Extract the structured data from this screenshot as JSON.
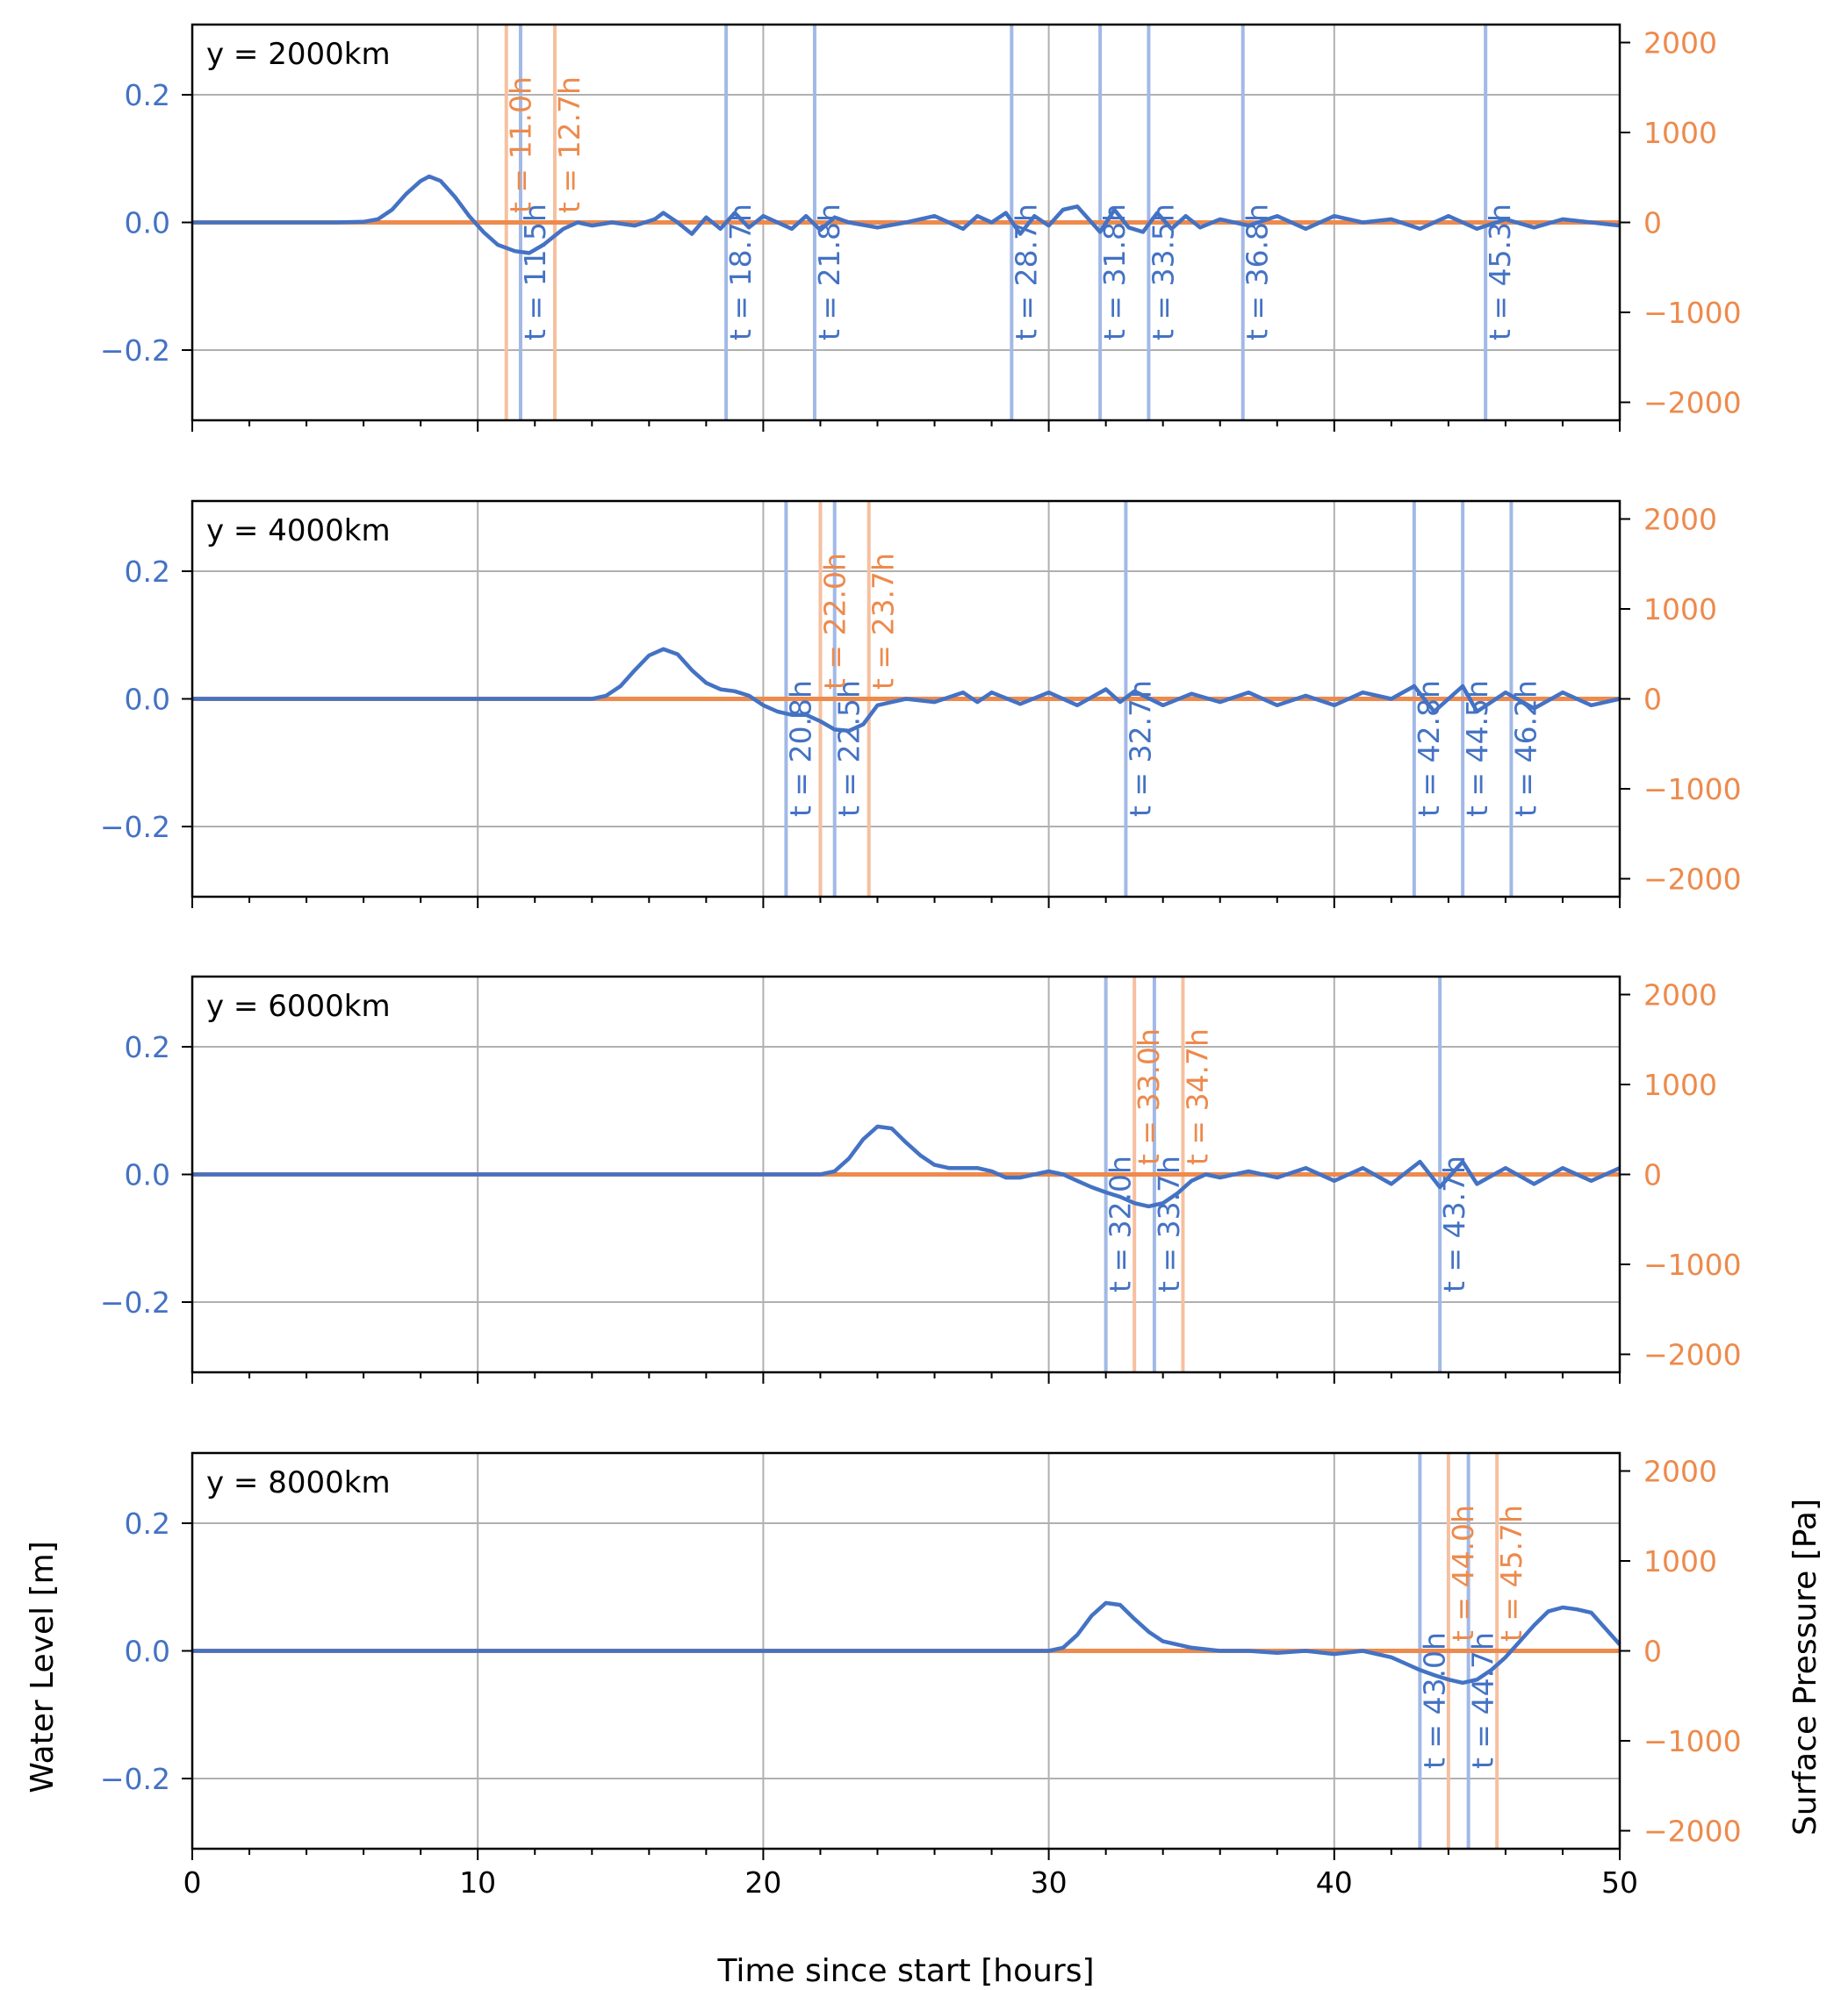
{
  "figure": {
    "xlabel": "Time since start [hours]",
    "ylabel_left": "Water Level [m]",
    "ylabel_right": "Surface Pressure [Pa]"
  },
  "colors": {
    "water": "#4472c4",
    "pressure": "#ed8a4c",
    "water_vline": "#a2b9e6",
    "pressure_vline": "#f6c0a0",
    "grid": "#b0b0b0"
  },
  "chart_data": [
    {
      "type": "line",
      "panel_label": "y = 2000km",
      "xlim": [
        0,
        50
      ],
      "ylim_left": [
        -0.31,
        0.31
      ],
      "ylim_right": [
        -2200,
        2200
      ],
      "x_ticks": [
        0,
        10,
        20,
        30,
        40,
        50
      ],
      "y_ticks_left": [
        "0.2",
        "0.0",
        "−0.2"
      ],
      "y_ticks_right": [
        "2000",
        "1000",
        "0",
        "−1000",
        "−2000"
      ],
      "grid": true,
      "series": [
        {
          "name": "Water Level [m]",
          "axis": "left",
          "x": [
            0,
            5,
            6,
            6.5,
            7,
            7.5,
            8,
            8.3,
            8.7,
            9.2,
            9.7,
            10.2,
            10.7,
            11.3,
            11.8,
            12.3,
            13,
            13.5,
            14,
            14.7,
            15.5,
            16.2,
            16.5,
            17,
            17.5,
            18,
            18.5,
            19,
            19.5,
            20,
            21,
            21.5,
            22,
            22.5,
            23,
            24,
            25,
            26,
            27,
            27.5,
            28,
            28.5,
            29,
            29.5,
            30,
            30.5,
            31,
            31.3,
            31.8,
            32.3,
            32.8,
            33.3,
            33.8,
            34.3,
            34.8,
            35.3,
            36,
            37,
            38,
            39,
            40,
            41,
            42,
            43,
            44,
            45,
            46,
            47,
            48,
            49,
            50
          ],
          "y": [
            0,
            0,
            0.001,
            0.005,
            0.02,
            0.045,
            0.065,
            0.072,
            0.065,
            0.04,
            0.01,
            -0.015,
            -0.035,
            -0.045,
            -0.048,
            -0.035,
            -0.01,
            0,
            -0.005,
            0,
            -0.005,
            0.005,
            0.015,
            0,
            -0.018,
            0.008,
            -0.01,
            0.015,
            -0.008,
            0.01,
            -0.01,
            0.01,
            -0.012,
            0.008,
            0,
            -0.008,
            0,
            0.01,
            -0.01,
            0.01,
            0,
            0.015,
            -0.018,
            0.01,
            -0.005,
            0.02,
            0.025,
            0.01,
            -0.015,
            0.02,
            -0.008,
            -0.015,
            0.015,
            -0.01,
            0.01,
            -0.008,
            0.005,
            -0.005,
            0.01,
            -0.01,
            0.01,
            0,
            0.005,
            -0.01,
            0.01,
            -0.01,
            0.005,
            -0.008,
            0.005,
            0,
            -0.005
          ]
        },
        {
          "name": "Surface Pressure [Pa]",
          "axis": "right",
          "x": [
            0,
            50
          ],
          "y": [
            0,
            0
          ]
        }
      ],
      "vlines_water": [
        {
          "t": 11.5,
          "label": "t = 11.5h"
        },
        {
          "t": 18.7,
          "label": "t = 18.7h"
        },
        {
          "t": 21.8,
          "label": "t = 21.8h"
        },
        {
          "t": 28.7,
          "label": "t = 28.7h"
        },
        {
          "t": 31.8,
          "label": "t = 31.8h"
        },
        {
          "t": 33.5,
          "label": "t = 33.5h"
        },
        {
          "t": 36.8,
          "label": "t = 36.8h"
        },
        {
          "t": 45.3,
          "label": "t = 45.3h"
        }
      ],
      "vlines_pressure": [
        {
          "t": 11.0,
          "label": "t = 11.0h"
        },
        {
          "t": 12.7,
          "label": "t = 12.7h"
        }
      ]
    },
    {
      "type": "line",
      "panel_label": "y = 4000km",
      "xlim": [
        0,
        50
      ],
      "ylim_left": [
        -0.31,
        0.31
      ],
      "ylim_right": [
        -2200,
        2200
      ],
      "x_ticks": [
        0,
        10,
        20,
        30,
        40,
        50
      ],
      "y_ticks_left": [
        "0.2",
        "0.0",
        "−0.2"
      ],
      "y_ticks_right": [
        "2000",
        "1000",
        "0",
        "−1000",
        "−2000"
      ],
      "grid": true,
      "series": [
        {
          "name": "Water Level [m]",
          "axis": "left",
          "x": [
            0,
            14,
            14.5,
            15,
            15.5,
            16,
            16.5,
            17,
            17.5,
            18,
            18.5,
            19,
            19.5,
            20,
            20.5,
            21,
            21.5,
            22,
            22.5,
            23,
            23.5,
            24,
            25,
            26,
            27,
            27.5,
            28,
            29,
            30,
            31,
            32,
            32.5,
            33,
            34,
            35,
            36,
            37,
            38,
            39,
            40,
            41,
            42,
            42.8,
            43.5,
            44.5,
            45,
            46,
            47,
            48,
            49,
            50
          ],
          "y": [
            0,
            0,
            0.005,
            0.02,
            0.045,
            0.068,
            0.078,
            0.07,
            0.045,
            0.025,
            0.015,
            0.012,
            0.005,
            -0.01,
            -0.02,
            -0.025,
            -0.025,
            -0.035,
            -0.048,
            -0.05,
            -0.04,
            -0.01,
            0,
            -0.005,
            0.01,
            -0.005,
            0.01,
            -0.008,
            0.01,
            -0.01,
            0.015,
            -0.005,
            0.012,
            -0.01,
            0.008,
            -0.005,
            0.01,
            -0.01,
            0.005,
            -0.01,
            0.01,
            0,
            0.02,
            -0.02,
            0.02,
            -0.02,
            0.01,
            -0.015,
            0.01,
            -0.01,
            0
          ]
        },
        {
          "name": "Surface Pressure [Pa]",
          "axis": "right",
          "x": [
            0,
            50
          ],
          "y": [
            0,
            0
          ]
        }
      ],
      "vlines_water": [
        {
          "t": 20.8,
          "label": "t = 20.8h"
        },
        {
          "t": 22.5,
          "label": "t = 22.5h"
        },
        {
          "t": 32.7,
          "label": "t = 32.7h"
        },
        {
          "t": 42.8,
          "label": "t = 42.8h"
        },
        {
          "t": 44.5,
          "label": "t = 44.5h"
        },
        {
          "t": 46.2,
          "label": "t = 46.2h"
        }
      ],
      "vlines_pressure": [
        {
          "t": 22.0,
          "label": "t = 22.0h"
        },
        {
          "t": 23.7,
          "label": "t = 23.7h"
        }
      ]
    },
    {
      "type": "line",
      "panel_label": "y = 6000km",
      "xlim": [
        0,
        50
      ],
      "ylim_left": [
        -0.31,
        0.31
      ],
      "ylim_right": [
        -2200,
        2200
      ],
      "x_ticks": [
        0,
        10,
        20,
        30,
        40,
        50
      ],
      "y_ticks_left": [
        "0.2",
        "0.0",
        "−0.2"
      ],
      "y_ticks_right": [
        "2000",
        "1000",
        "0",
        "−1000",
        "−2000"
      ],
      "grid": true,
      "series": [
        {
          "name": "Water Level [m]",
          "axis": "left",
          "x": [
            0,
            22,
            22.5,
            23,
            23.5,
            24,
            24.5,
            25,
            25.5,
            26,
            26.5,
            27,
            27.5,
            28,
            28.5,
            29,
            29.5,
            30,
            30.5,
            31,
            31.5,
            32,
            32.5,
            33,
            33.5,
            34,
            34.5,
            35,
            35.5,
            36,
            37,
            38,
            39,
            40,
            41,
            42,
            43,
            43.7,
            44.5,
            45,
            46,
            47,
            48,
            49,
            50
          ],
          "y": [
            0,
            0,
            0.005,
            0.025,
            0.055,
            0.075,
            0.072,
            0.05,
            0.03,
            0.015,
            0.01,
            0.01,
            0.01,
            0.005,
            -0.005,
            -0.005,
            0,
            0.005,
            0,
            -0.01,
            -0.02,
            -0.028,
            -0.035,
            -0.045,
            -0.05,
            -0.045,
            -0.03,
            -0.01,
            0,
            -0.005,
            0.005,
            -0.005,
            0.01,
            -0.01,
            0.01,
            -0.015,
            0.02,
            -0.02,
            0.02,
            -0.015,
            0.01,
            -0.015,
            0.01,
            -0.01,
            0.01
          ]
        },
        {
          "name": "Surface Pressure [Pa]",
          "axis": "right",
          "x": [
            0,
            50
          ],
          "y": [
            0,
            0
          ]
        }
      ],
      "vlines_water": [
        {
          "t": 32.0,
          "label": "t = 32.0h"
        },
        {
          "t": 33.7,
          "label": "t = 33.7h"
        },
        {
          "t": 43.7,
          "label": "t = 43.7h"
        }
      ],
      "vlines_pressure": [
        {
          "t": 33.0,
          "label": "t = 33.0h"
        },
        {
          "t": 34.7,
          "label": "t = 34.7h"
        }
      ]
    },
    {
      "type": "line",
      "panel_label": "y = 8000km",
      "xlim": [
        0,
        50
      ],
      "ylim_left": [
        -0.31,
        0.31
      ],
      "ylim_right": [
        -2200,
        2200
      ],
      "x_ticks": [
        0,
        10,
        20,
        30,
        40,
        50
      ],
      "y_ticks_left": [
        "0.2",
        "0.0",
        "−0.2"
      ],
      "y_ticks_right": [
        "2000",
        "1000",
        "0",
        "−1000",
        "−2000"
      ],
      "grid": true,
      "series": [
        {
          "name": "Water Level [m]",
          "axis": "left",
          "x": [
            0,
            30,
            30.5,
            31,
            31.5,
            32,
            32.5,
            33,
            33.5,
            34,
            35,
            36,
            37,
            38,
            39,
            40,
            41,
            42,
            42.5,
            43,
            43.5,
            44,
            44.5,
            45,
            45.5,
            46,
            46.5,
            47,
            47.5,
            48,
            48.5,
            49,
            49.5,
            50
          ],
          "y": [
            0,
            0,
            0.005,
            0.025,
            0.055,
            0.075,
            0.072,
            0.05,
            0.03,
            0.015,
            0.005,
            0,
            0,
            -0.003,
            0,
            -0.005,
            0,
            -0.01,
            -0.02,
            -0.03,
            -0.038,
            -0.045,
            -0.05,
            -0.045,
            -0.03,
            -0.01,
            0.015,
            0.04,
            0.062,
            0.068,
            0.065,
            0.06,
            0.035,
            0.01
          ]
        },
        {
          "name": "Surface Pressure [Pa]",
          "axis": "right",
          "x": [
            0,
            50
          ],
          "y": [
            0,
            0
          ]
        }
      ],
      "vlines_water": [
        {
          "t": 43.0,
          "label": "t = 43.0h"
        },
        {
          "t": 44.7,
          "label": "t = 44.7h"
        }
      ],
      "vlines_pressure": [
        {
          "t": 44.0,
          "label": "t = 44.0h"
        },
        {
          "t": 45.7,
          "label": "t = 45.7h"
        }
      ]
    }
  ]
}
